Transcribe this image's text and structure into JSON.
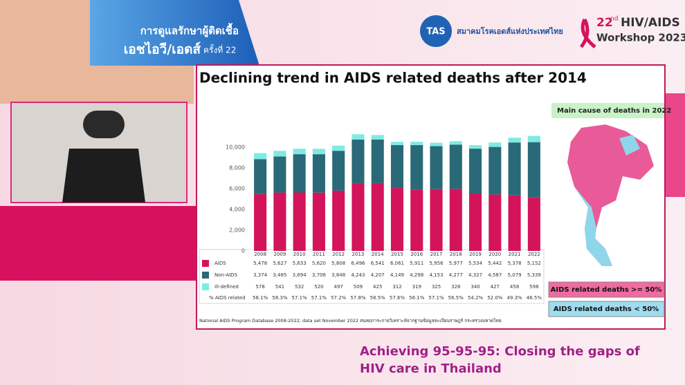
{
  "header": {
    "line1": "การดูแลรักษาผู้ติดเชื้อ",
    "line2": "เอชไอวี/เอดส์",
    "edition": "ครั้งที่ 22",
    "logo_text": "TAS",
    "society": "สมาคมโรคเอดส์แห่งประเทศไทย",
    "workshop_num": "22",
    "workshop_sup": "nd",
    "workshop_name": "HIV/AIDS",
    "workshop_year": "Workshop 2023"
  },
  "chart_data": {
    "type": "stacked_bar",
    "title": "Declining trend in AIDS related deaths after 2014",
    "categories": [
      "2008",
      "2009",
      "2010",
      "2011",
      "2012",
      "2013",
      "2014",
      "2015",
      "2016",
      "2017",
      "2018",
      "2019",
      "2020",
      "2021",
      "2022"
    ],
    "series": [
      {
        "name": "AIDS",
        "color": "#d4145a",
        "values": [
          5478,
          5627,
          5633,
          5620,
          5808,
          6496,
          6541,
          6061,
          5911,
          5956,
          5977,
          5534,
          5442,
          5378,
          5152
        ],
        "value_labels": [
          "5,478",
          "5,627",
          "5,633",
          "5,620",
          "5,808",
          "6,496",
          "6,541",
          "6,061",
          "5,911",
          "5,956",
          "5,977",
          "5,534",
          "5,442",
          "5,378",
          "5,152"
        ]
      },
      {
        "name": "Non-AIDS",
        "color": "#2a6a78",
        "values": [
          3374,
          3485,
          3694,
          3706,
          3848,
          4243,
          4207,
          4149,
          4298,
          4153,
          4277,
          4327,
          4587,
          5079,
          5339
        ],
        "value_labels": [
          "3,374",
          "3,485",
          "3,694",
          "3,706",
          "3,848",
          "4,243",
          "4,207",
          "4,149",
          "4,298",
          "4,153",
          "4,277",
          "4,327",
          "4,587",
          "5,079",
          "5,339"
        ]
      },
      {
        "name": "Ill-defined",
        "color": "#7eebe2",
        "values": [
          578,
          541,
          532,
          520,
          497,
          509,
          425,
          312,
          319,
          325,
          328,
          340,
          427,
          458,
          598
        ]
      }
    ],
    "share_row_name": "% AIDS related",
    "share_labels": [
      "58.1%",
      "58.3%",
      "57.1%",
      "57.1%",
      "57.2%",
      "57.8%",
      "58.5%",
      "57.6%",
      "56.1%",
      "57.1%",
      "56.5%",
      "54.2%",
      "52.0%",
      "49.3%",
      "46.5%"
    ],
    "ylim": [
      0,
      12000
    ],
    "yticks": [
      0,
      {
        "value": 2000,
        "label": "2,000"
      },
      {
        "value": 4000,
        "label": "4,000"
      },
      {
        "value": 6000,
        "label": "6,000"
      },
      {
        "value": 8000,
        "label": "8,000"
      },
      {
        "value": 10000,
        "label": "10,000"
      }
    ],
    "source": "National AIDS Program Database 2008-2022; data set November 2022 สนหฤการะกายวิเคราะห์จากฐานข้อมูลทะเบียนราษฎร์ กระทรวงมหาดไทย"
  },
  "map": {
    "title": "Main cause of deaths in 2022",
    "legend_high": "AIDS related deaths >= 50%",
    "legend_low": "AIDS related deaths < 50%"
  },
  "footer": {
    "line1": "Achieving 95-95-95: Closing the gaps of",
    "line2": "HIV care in Thailand"
  }
}
